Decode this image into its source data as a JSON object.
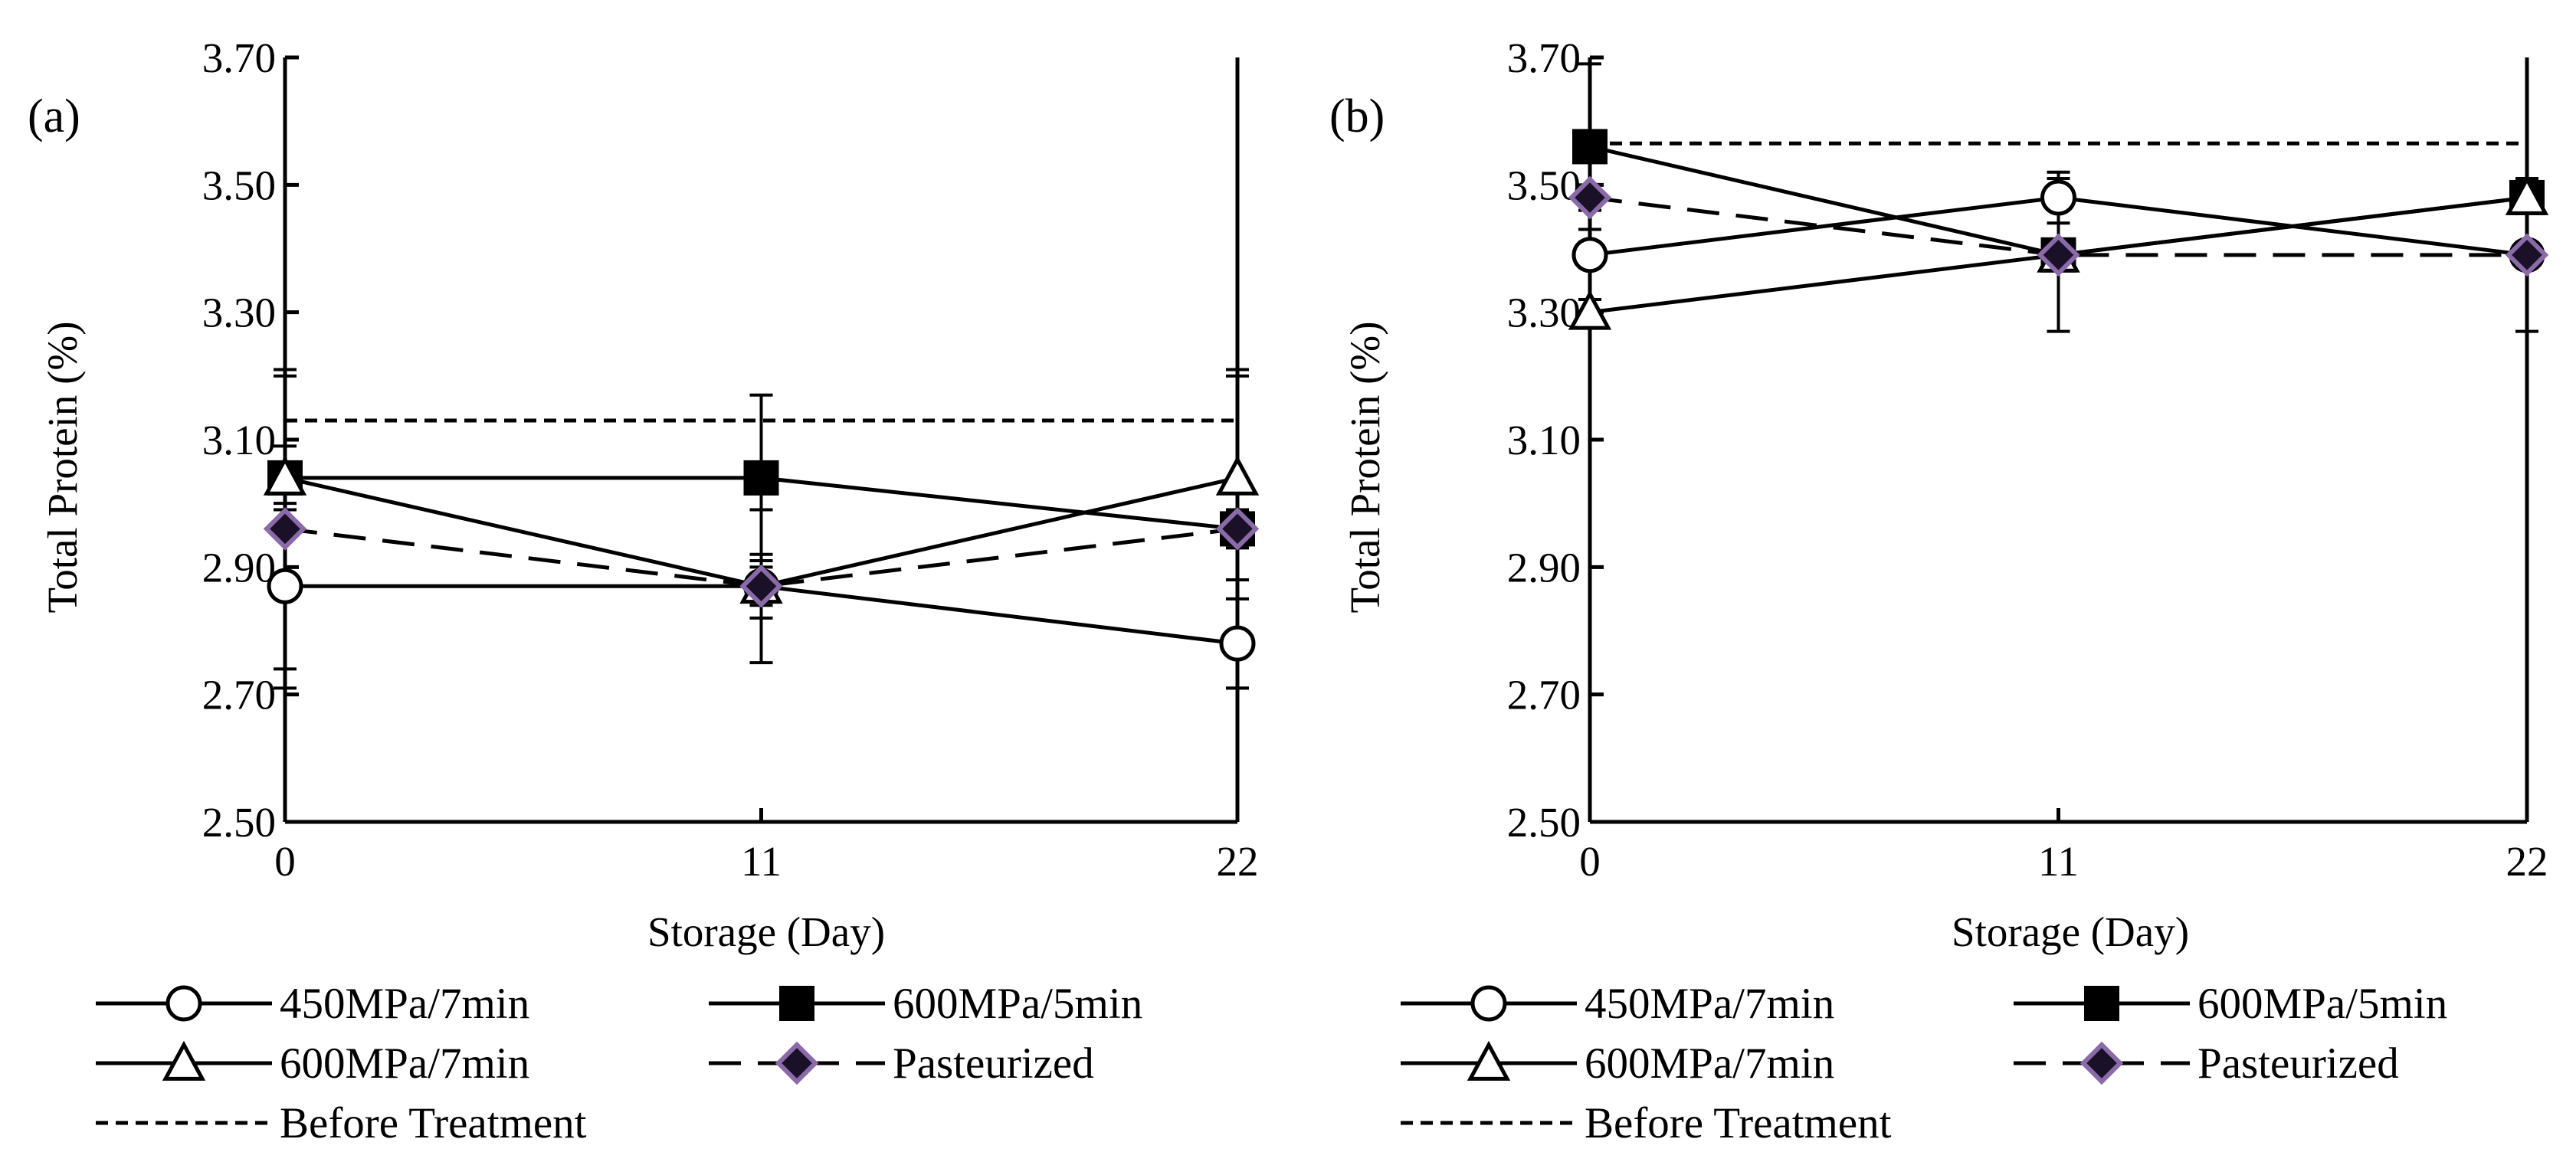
{
  "figure": {
    "x_label": "Storage (Day)",
    "y_label": "Total Protein (%)"
  },
  "chart_data": [
    {
      "type": "line",
      "panel_label": "(a)",
      "title": "",
      "xlabel": "Storage (Day)",
      "ylabel": "Total Protein (%)",
      "categories": [
        "0",
        "11",
        "22"
      ],
      "x": [
        0,
        11,
        22
      ],
      "xlim": [
        0,
        22
      ],
      "ylim": [
        2.5,
        3.7
      ],
      "yticks": [
        "2.50",
        "2.70",
        "2.90",
        "3.10",
        "3.30",
        "3.50",
        "3.70"
      ],
      "grid": false,
      "series": [
        {
          "name": "450MPa/7min",
          "marker": "circle-open",
          "line": "solid",
          "values": [
            2.87,
            2.87,
            2.78
          ],
          "errors": [
            0.13,
            0.05,
            0.07
          ]
        },
        {
          "name": "600MPa/5min",
          "marker": "square-filled",
          "line": "solid",
          "values": [
            3.04,
            3.04,
            2.96
          ],
          "errors": [
            0.16,
            0.13,
            0.25
          ]
        },
        {
          "name": "600MPa/7min",
          "marker": "triangle-open",
          "line": "solid",
          "values": [
            3.04,
            2.87,
            3.04
          ],
          "errors": [
            0.05,
            0.03,
            0.16
          ]
        },
        {
          "name": "Pasteurized",
          "marker": "diamond-purple",
          "line": "dashed",
          "values": [
            2.96,
            2.87,
            2.96
          ],
          "errors": [
            0.25,
            0.12,
            0.03
          ]
        },
        {
          "name": "Before Treatment",
          "marker": "none",
          "line": "short-dash",
          "constant": 3.13
        }
      ]
    },
    {
      "type": "line",
      "panel_label": "(b)",
      "title": "",
      "xlabel": "Storage (Day)",
      "ylabel": "Total Protein (%)",
      "categories": [
        "0",
        "11",
        "22"
      ],
      "x": [
        0,
        11,
        22
      ],
      "xlim": [
        0,
        22
      ],
      "ylim": [
        2.5,
        3.7
      ],
      "yticks": [
        "2.50",
        "2.70",
        "2.90",
        "3.10",
        "3.30",
        "3.50",
        "3.70"
      ],
      "grid": false,
      "series": [
        {
          "name": "450MPa/7min",
          "marker": "circle-open",
          "line": "solid",
          "values": [
            3.39,
            3.48,
            3.39
          ],
          "errors": [
            0.02,
            0.04,
            0.02
          ]
        },
        {
          "name": "600MPa/5min",
          "marker": "square-filled",
          "line": "solid",
          "values": [
            3.56,
            3.39,
            3.48
          ],
          "errors": [
            0.13,
            0.12,
            0.02
          ]
        },
        {
          "name": "600MPa/7min",
          "marker": "triangle-open",
          "line": "solid",
          "values": [
            3.3,
            3.39,
            3.48
          ],
          "errors": [
            0.02,
            0.02,
            0.02
          ]
        },
        {
          "name": "Pasteurized",
          "marker": "diamond-purple",
          "line": "dashed",
          "values": [
            3.48,
            3.39,
            3.39
          ],
          "errors": [
            0.02,
            0.02,
            0.12
          ]
        },
        {
          "name": "Before Treatment",
          "marker": "none",
          "line": "short-dash",
          "constant": 3.565
        }
      ]
    }
  ],
  "colors": {
    "axis": "#000000",
    "marker_fill_open": "#ffffff",
    "pasteurized_fill": "#1a1028",
    "pasteurized_edge": "#8a6aa8",
    "background": "#ffffff"
  }
}
